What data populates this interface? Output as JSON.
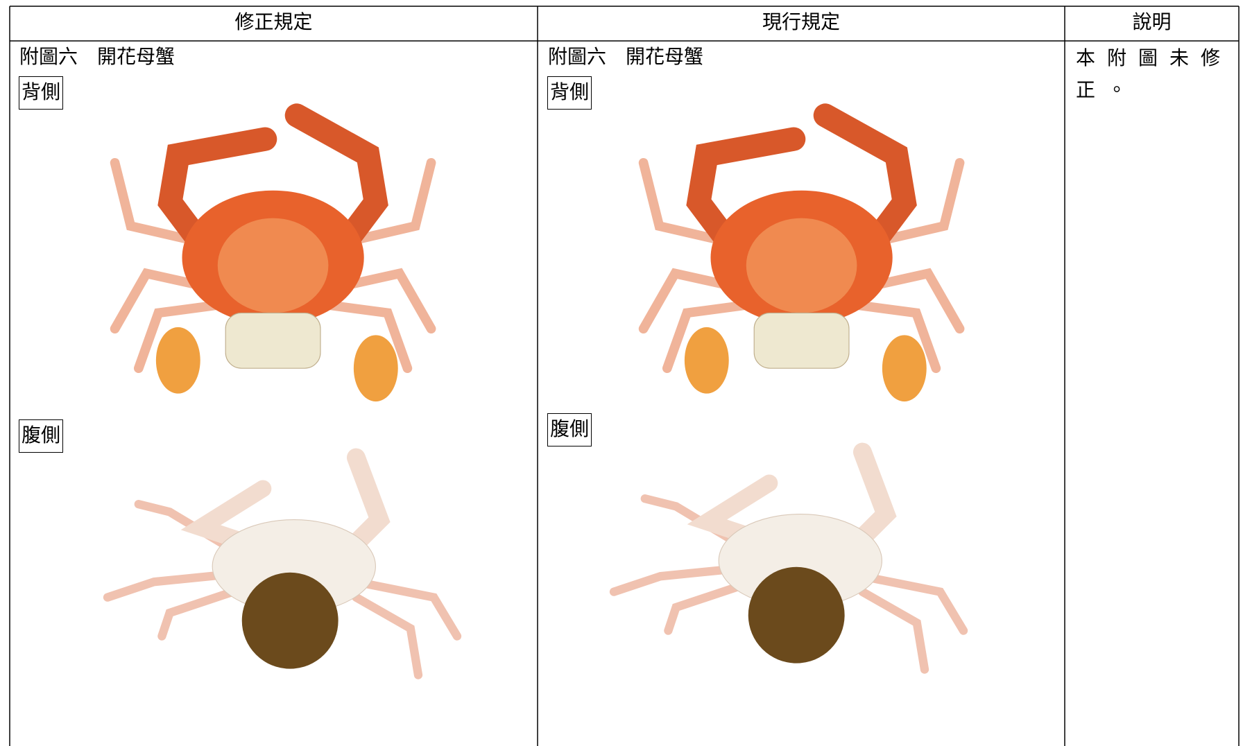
{
  "table": {
    "headers": [
      "修正規定",
      "現行規定",
      "說明"
    ],
    "rows": [
      [
        {
          "title": "附圖六　開花母蟹",
          "dorsal": "背側",
          "ventral": "腹側"
        },
        {
          "title": "附圖六　開花母蟹",
          "dorsal": "背側",
          "ventral": "腹側"
        },
        "本附圖未修正。"
      ]
    ]
  }
}
